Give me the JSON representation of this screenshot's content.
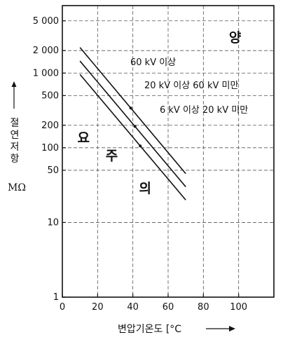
{
  "chart_data": {
    "type": "line",
    "xlabel": "변압기온도 [°C",
    "ylabel_vertical": [
      "절",
      "연",
      "저",
      "항"
    ],
    "yunit": "MΩ",
    "x_ticks": [
      0,
      20,
      40,
      60,
      80,
      100
    ],
    "y_ticks": [
      1,
      10,
      50,
      100,
      200,
      500,
      1000,
      2000,
      5000
    ],
    "y_tick_labels": [
      "1",
      "10",
      "50",
      "100",
      "200",
      "500",
      "1 000",
      "2 000",
      "5 000"
    ],
    "xlim": [
      0,
      120
    ],
    "ylim": [
      1,
      8000
    ],
    "y_scale": "log",
    "grid": true,
    "series": [
      {
        "name": "60 kV 이상",
        "x": [
          10,
          70
        ],
        "y": [
          2200,
          45
        ]
      },
      {
        "name": "20 kV 이상 60 kV 미만",
        "x": [
          10,
          70
        ],
        "y": [
          1450,
          30
        ]
      },
      {
        "name": "6 kV 이상 20 kV 미만",
        "x": [
          10,
          70
        ],
        "y": [
          960,
          20
        ]
      }
    ],
    "zone_labels": [
      {
        "text": "양",
        "x": 98,
        "y": 2600
      },
      {
        "text": "요",
        "x": 12,
        "y": 118
      },
      {
        "text": "주",
        "x": 28,
        "y": 68
      },
      {
        "text": "의",
        "x": 47,
        "y": 25
      }
    ]
  }
}
